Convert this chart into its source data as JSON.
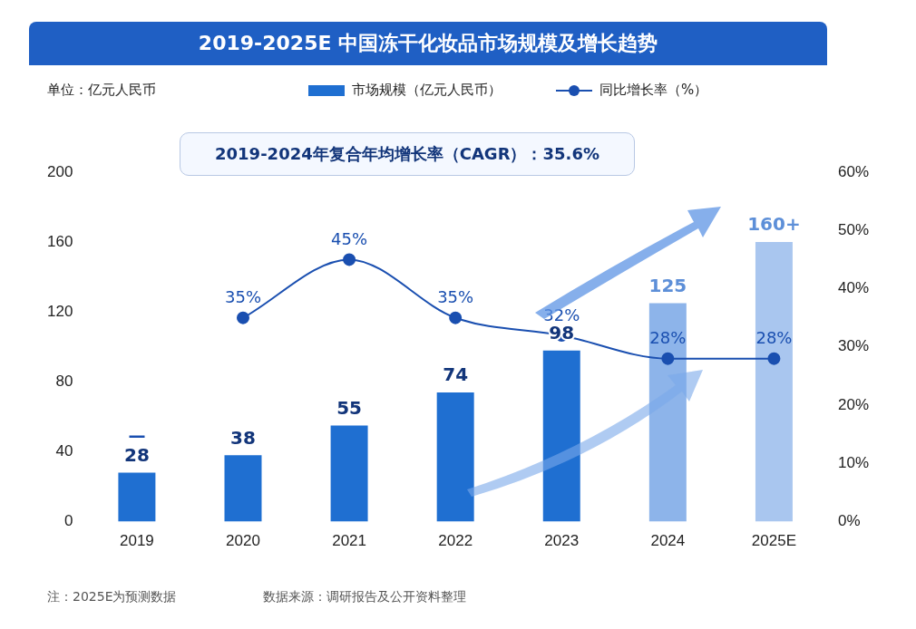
{
  "chart_data": {
    "type": "bar",
    "title": "2019-2025E 中国冻干化妆品市场规模及增长趋势",
    "categories": [
      "2019",
      "2020",
      "2021",
      "2022",
      "2023",
      "2024",
      "2025E"
    ],
    "series": [
      {
        "name": "市场规模（亿元人民币）",
        "color": "#1f6fd1",
        "colors": [
          "#1f6fd1",
          "#1f6fd1",
          "#1f6fd1",
          "#1f6fd1",
          "#1f6fd1",
          "#8db4ea",
          "#a9c6ef"
        ],
        "values": [
          28,
          38,
          55,
          74,
          98,
          125,
          160
        ],
        "value_labels": [
          "28",
          "38",
          "55",
          "74",
          "98",
          "125",
          "160+"
        ]
      },
      {
        "name": "同比增长率（%）",
        "type": "line",
        "axis": "y2",
        "color": "#1a4fb0",
        "values": [
          null,
          35,
          45,
          35,
          32,
          28,
          28
        ],
        "value_labels": [
          "—",
          "35%",
          "45%",
          "35%",
          "32%",
          "28%",
          "28%"
        ]
      }
    ],
    "ylim": [
      0,
      200
    ],
    "yticks": [
      0,
      40,
      80,
      120,
      160,
      200
    ],
    "y2lim": [
      0,
      60
    ],
    "y2ticks": [
      {
        "value": 0,
        "label": "0%"
      },
      {
        "value": 10,
        "label": "10%"
      },
      {
        "value": 20,
        "label": "20%"
      },
      {
        "value": 30,
        "label": "30%"
      },
      {
        "value": 40,
        "label": "40%"
      },
      {
        "value": 50,
        "label": "50%"
      },
      {
        "value": 60,
        "label": "60%"
      }
    ],
    "grid": false,
    "legend": "top",
    "marker": "circle",
    "line_style": "solid",
    "annotations": [
      "单位：亿元人民币",
      "2019-2024年复合年均增长率（CAGR）：35.6%",
      "注：2025E为预测数据",
      "数据来源：调研报告及公开资料整理"
    ]
  }
}
